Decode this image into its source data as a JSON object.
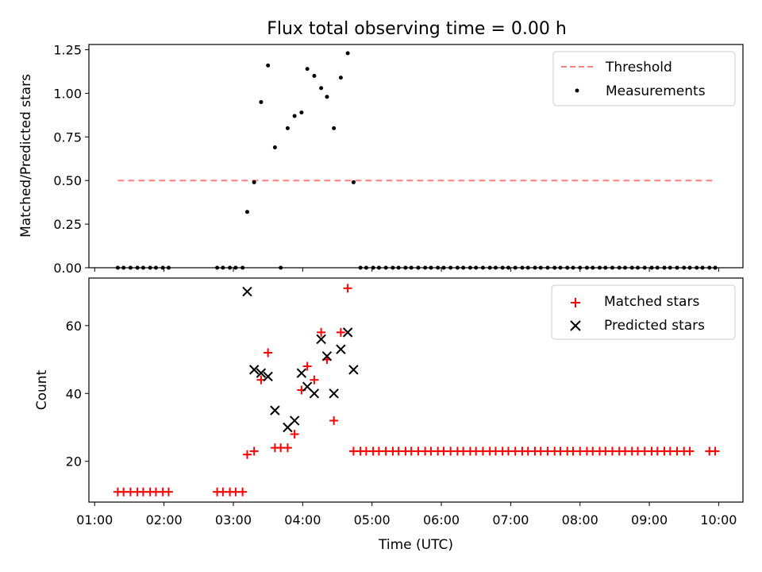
{
  "chart_data": [
    {
      "type": "scatter",
      "title": "Flux total observing time = 0.00 h",
      "ylabel": "Matched/Predicted stars",
      "xlabel": "",
      "xlim": [
        "00:55",
        "10:21"
      ],
      "ylim": [
        0,
        1.28
      ],
      "yticks": [
        0.0,
        0.25,
        0.5,
        0.75,
        1.0,
        1.25
      ],
      "ytick_labels": [
        "0.00",
        "0.25",
        "0.50",
        "0.75",
        "1.00",
        "1.25"
      ],
      "xticks": [
        "01:00",
        "02:00",
        "03:00",
        "04:00",
        "05:00",
        "06:00",
        "07:00",
        "08:00",
        "09:00",
        "10:00"
      ],
      "grid": false,
      "legend_position": "top-right",
      "series": [
        {
          "name": "Threshold",
          "kind": "line",
          "style": "dashed",
          "color": "#ff7f7f",
          "x": [
            "01:20",
            "09:57"
          ],
          "y": [
            0.5,
            0.5
          ]
        },
        {
          "name": "Measurements",
          "kind": "scatter",
          "color": "#000000",
          "points": [
            [
              "01:20",
              0
            ],
            [
              "01:25",
              0
            ],
            [
              "01:31",
              0
            ],
            [
              "01:37",
              0
            ],
            [
              "01:42",
              0
            ],
            [
              "01:48",
              0
            ],
            [
              "01:53",
              0
            ],
            [
              "01:59",
              0
            ],
            [
              "02:04",
              0
            ],
            [
              "02:46",
              0
            ],
            [
              "02:51",
              0
            ],
            [
              "02:57",
              0
            ],
            [
              "03:02",
              0
            ],
            [
              "03:08",
              0
            ],
            [
              "03:12",
              0.32
            ],
            [
              "03:18",
              0.49
            ],
            [
              "03:24",
              0.95
            ],
            [
              "03:30",
              1.16
            ],
            [
              "03:36",
              0.69
            ],
            [
              "03:41",
              0
            ],
            [
              "03:47",
              0.8
            ],
            [
              "03:53",
              0.87
            ],
            [
              "03:59",
              0.89
            ],
            [
              "04:04",
              1.14
            ],
            [
              "04:10",
              1.1
            ],
            [
              "04:16",
              1.03
            ],
            [
              "04:21",
              0.98
            ],
            [
              "04:27",
              0.8
            ],
            [
              "04:33",
              1.09
            ],
            [
              "04:39",
              1.23
            ],
            [
              "04:44",
              0.49
            ],
            [
              "04:50",
              0
            ],
            [
              "04:55",
              0
            ],
            [
              "05:01",
              0
            ],
            [
              "05:06",
              0
            ],
            [
              "05:12",
              0
            ],
            [
              "05:18",
              0
            ],
            [
              "05:23",
              0
            ],
            [
              "05:29",
              0
            ],
            [
              "05:34",
              0
            ],
            [
              "05:40",
              0
            ],
            [
              "05:46",
              0
            ],
            [
              "05:51",
              0
            ],
            [
              "05:57",
              0
            ],
            [
              "06:02",
              0
            ],
            [
              "06:08",
              0
            ],
            [
              "06:14",
              0
            ],
            [
              "06:19",
              0
            ],
            [
              "06:25",
              0
            ],
            [
              "06:30",
              0
            ],
            [
              "06:36",
              0
            ],
            [
              "06:42",
              0
            ],
            [
              "06:47",
              0
            ],
            [
              "06:53",
              0
            ],
            [
              "06:58",
              0
            ],
            [
              "07:04",
              0
            ],
            [
              "07:10",
              0
            ],
            [
              "07:15",
              0
            ],
            [
              "07:21",
              0
            ],
            [
              "07:26",
              0
            ],
            [
              "07:32",
              0
            ],
            [
              "07:38",
              0
            ],
            [
              "07:43",
              0
            ],
            [
              "07:49",
              0
            ],
            [
              "07:54",
              0
            ],
            [
              "08:00",
              0
            ],
            [
              "08:06",
              0
            ],
            [
              "08:11",
              0
            ],
            [
              "08:17",
              0
            ],
            [
              "08:22",
              0
            ],
            [
              "08:28",
              0
            ],
            [
              "08:34",
              0
            ],
            [
              "08:39",
              0
            ],
            [
              "08:45",
              0
            ],
            [
              "08:50",
              0
            ],
            [
              "08:56",
              0
            ],
            [
              "09:02",
              0
            ],
            [
              "09:07",
              0
            ],
            [
              "09:13",
              0
            ],
            [
              "09:18",
              0
            ],
            [
              "09:24",
              0
            ],
            [
              "09:30",
              0
            ],
            [
              "09:35",
              0
            ],
            [
              "09:41",
              0
            ],
            [
              "09:46",
              0
            ],
            [
              "09:52",
              0
            ],
            [
              "09:57",
              0
            ]
          ]
        }
      ]
    },
    {
      "type": "scatter",
      "title": "",
      "ylabel": "Count",
      "xlabel": "Time (UTC)",
      "xlim": [
        "00:55",
        "10:21"
      ],
      "ylim": [
        8,
        74
      ],
      "yticks": [
        20,
        40,
        60
      ],
      "ytick_labels": [
        "20",
        "40",
        "60"
      ],
      "xticks": [
        "01:00",
        "02:00",
        "03:00",
        "04:00",
        "05:00",
        "06:00",
        "07:00",
        "08:00",
        "09:00",
        "10:00"
      ],
      "grid": false,
      "legend_position": "top-right",
      "series": [
        {
          "name": "Matched stars",
          "kind": "scatter",
          "marker": "plus",
          "color": "#ff0000",
          "points": [
            [
              "01:20",
              11
            ],
            [
              "01:25",
              11
            ],
            [
              "01:31",
              11
            ],
            [
              "01:37",
              11
            ],
            [
              "01:42",
              11
            ],
            [
              "01:48",
              11
            ],
            [
              "01:53",
              11
            ],
            [
              "01:59",
              11
            ],
            [
              "02:04",
              11
            ],
            [
              "02:46",
              11
            ],
            [
              "02:51",
              11
            ],
            [
              "02:57",
              11
            ],
            [
              "03:02",
              11
            ],
            [
              "03:08",
              11
            ],
            [
              "03:12",
              22
            ],
            [
              "03:18",
              23
            ],
            [
              "03:24",
              44
            ],
            [
              "03:30",
              52
            ],
            [
              "03:36",
              24
            ],
            [
              "03:41",
              24
            ],
            [
              "03:47",
              24
            ],
            [
              "03:53",
              28
            ],
            [
              "03:59",
              41
            ],
            [
              "04:04",
              48
            ],
            [
              "04:10",
              44
            ],
            [
              "04:16",
              58
            ],
            [
              "04:21",
              50
            ],
            [
              "04:27",
              32
            ],
            [
              "04:33",
              58
            ],
            [
              "04:39",
              71
            ],
            [
              "04:44",
              23
            ],
            [
              "04:50",
              23
            ],
            [
              "04:55",
              23
            ],
            [
              "05:01",
              23
            ],
            [
              "05:06",
              23
            ],
            [
              "05:12",
              23
            ],
            [
              "05:18",
              23
            ],
            [
              "05:23",
              23
            ],
            [
              "05:29",
              23
            ],
            [
              "05:34",
              23
            ],
            [
              "05:40",
              23
            ],
            [
              "05:46",
              23
            ],
            [
              "05:51",
              23
            ],
            [
              "05:57",
              23
            ],
            [
              "06:02",
              23
            ],
            [
              "06:08",
              23
            ],
            [
              "06:14",
              23
            ],
            [
              "06:19",
              23
            ],
            [
              "06:25",
              23
            ],
            [
              "06:30",
              23
            ],
            [
              "06:36",
              23
            ],
            [
              "06:42",
              23
            ],
            [
              "06:47",
              23
            ],
            [
              "06:53",
              23
            ],
            [
              "06:58",
              23
            ],
            [
              "07:04",
              23
            ],
            [
              "07:10",
              23
            ],
            [
              "07:15",
              23
            ],
            [
              "07:21",
              23
            ],
            [
              "07:26",
              23
            ],
            [
              "07:32",
              23
            ],
            [
              "07:38",
              23
            ],
            [
              "07:43",
              23
            ],
            [
              "07:49",
              23
            ],
            [
              "07:54",
              23
            ],
            [
              "08:00",
              23
            ],
            [
              "08:06",
              23
            ],
            [
              "08:11",
              23
            ],
            [
              "08:17",
              23
            ],
            [
              "08:22",
              23
            ],
            [
              "08:28",
              23
            ],
            [
              "08:34",
              23
            ],
            [
              "08:39",
              23
            ],
            [
              "08:45",
              23
            ],
            [
              "08:50",
              23
            ],
            [
              "08:56",
              23
            ],
            [
              "09:02",
              23
            ],
            [
              "09:07",
              23
            ],
            [
              "09:13",
              23
            ],
            [
              "09:18",
              23
            ],
            [
              "09:24",
              23
            ],
            [
              "09:30",
              23
            ],
            [
              "09:35",
              23
            ],
            [
              "09:52",
              23
            ],
            [
              "09:57",
              23
            ]
          ]
        },
        {
          "name": "Predicted stars",
          "kind": "scatter",
          "marker": "x",
          "color": "#000000",
          "points": [
            [
              "03:12",
              70
            ],
            [
              "03:18",
              47
            ],
            [
              "03:24",
              46
            ],
            [
              "03:30",
              45
            ],
            [
              "03:36",
              35
            ],
            [
              "03:47",
              30
            ],
            [
              "03:53",
              32
            ],
            [
              "03:59",
              46
            ],
            [
              "04:04",
              42
            ],
            [
              "04:10",
              40
            ],
            [
              "04:16",
              56
            ],
            [
              "04:21",
              51
            ],
            [
              "04:27",
              40
            ],
            [
              "04:33",
              53
            ],
            [
              "04:39",
              58
            ],
            [
              "04:44",
              47
            ]
          ]
        }
      ]
    }
  ]
}
